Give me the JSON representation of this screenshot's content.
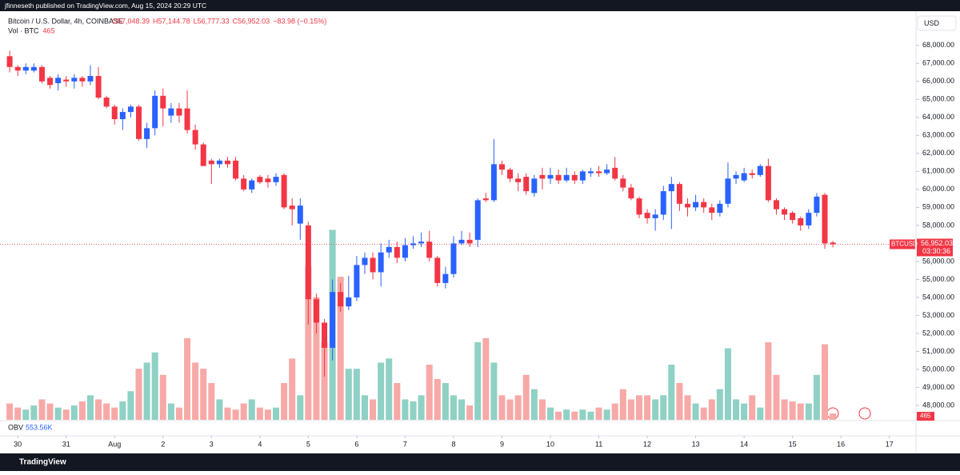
{
  "chart_data": {
    "type": "candlestick",
    "published": "jfinneseth published on TradingView.com, Aug 15, 2024 20:29 UTC",
    "title": "Bitcoin / U.S. Dollar, 4h, COINBASE",
    "header_values": [
      "O57,048.39",
      "H57,144.78",
      "L56,777.33",
      "C56,952.03",
      "−83.98 (−0.15%)"
    ],
    "volume_label": "Vol · BTC",
    "currency": "USD",
    "symbol": "BTCUSD",
    "last_price_label": "56,952.03",
    "countdown": "03:30:36",
    "indicator_name": "OBV",
    "indicator_value": "553.56K",
    "brand": "TradingView",
    "up_color": "#2962ff",
    "down_color": "#f23645",
    "volume_up_color": "#8fd1c4",
    "volume_down_color": "#f7a9a7",
    "open": [
      67400,
      66800,
      66600,
      66600,
      66800,
      66200,
      65900,
      66100,
      66000,
      66200,
      66000,
      66300,
      65100,
      64600,
      63900,
      64300,
      64600,
      62800,
      63400,
      65200,
      64100,
      64500,
      64500,
      63300,
      62500,
      61600,
      61400,
      61600,
      61600,
      60600,
      60000,
      60700,
      60600,
      60400,
      60800,
      59100,
      58100,
      58000,
      53900,
      52600,
      51200,
      54300,
      53500,
      54000,
      55800,
      56200,
      55400,
      56500,
      56800,
      56200,
      56900,
      57000,
      57100,
      56200,
      54800,
      55300,
      57000,
      57200,
      57200,
      59500,
      59400,
      61400,
      61100,
      60600,
      60700,
      59800,
      60800,
      60600,
      60800,
      60500,
      60800,
      60500,
      60900,
      61000,
      60900,
      61200,
      60600,
      60100,
      59500,
      58700,
      58400,
      58600,
      59900,
      60300,
      59200,
      59000,
      59300,
      59000,
      58700,
      59200,
      60600,
      60500,
      60900,
      60800,
      61300,
      59400,
      58900,
      58700,
      58400,
      58000,
      58700,
      59700,
      57048.39
    ],
    "high": [
      67700,
      66900,
      67000,
      67000,
      66900,
      66300,
      66400,
      66300,
      66400,
      66300,
      66900,
      66800,
      65200,
      64700,
      64500,
      64700,
      64700,
      63700,
      65500,
      65600,
      64800,
      64800,
      65500,
      63600,
      62600,
      61700,
      61700,
      61800,
      61800,
      60800,
      60600,
      60800,
      60800,
      60900,
      60900,
      59500,
      59500,
      58200,
      54200,
      52800,
      55000,
      54800,
      55200,
      56300,
      56500,
      56500,
      57000,
      57200,
      57100,
      57300,
      57400,
      57600,
      57700,
      56300,
      55700,
      57400,
      57700,
      57600,
      59500,
      59800,
      62800,
      61600,
      61200,
      60900,
      60900,
      60800,
      61200,
      61200,
      61100,
      61200,
      61000,
      61100,
      61200,
      61300,
      61400,
      61800,
      60800,
      60300,
      59600,
      58900,
      58900,
      60200,
      60700,
      60400,
      59500,
      59700,
      59500,
      59200,
      59400,
      61500,
      61000,
      61200,
      61100,
      61400,
      61700,
      59500,
      59000,
      58800,
      58500,
      58900,
      59800,
      59800,
      57144.78
    ],
    "low": [
      66500,
      66300,
      66400,
      66500,
      65900,
      65600,
      65500,
      65700,
      65600,
      65700,
      65800,
      65000,
      64500,
      63600,
      63300,
      64000,
      62700,
      62300,
      63000,
      63500,
      63700,
      63700,
      63100,
      62200,
      61300,
      60300,
      61200,
      61200,
      60500,
      59900,
      59800,
      60300,
      60100,
      60200,
      58900,
      58000,
      57200,
      52500,
      52000,
      49600,
      50500,
      53200,
      53300,
      53800,
      55300,
      55000,
      54600,
      56200,
      55900,
      56000,
      56700,
      56800,
      56000,
      54600,
      54500,
      55100,
      56900,
      56800,
      56800,
      59300,
      59300,
      60800,
      60400,
      59900,
      59700,
      59600,
      60000,
      60300,
      60300,
      60400,
      60300,
      60300,
      60700,
      60700,
      60800,
      60500,
      59900,
      59400,
      58400,
      58100,
      57700,
      58300,
      57800,
      58800,
      58500,
      58800,
      58700,
      58300,
      58500,
      59000,
      60300,
      60400,
      60600,
      60700,
      59300,
      58600,
      58300,
      58100,
      57700,
      57800,
      58500,
      56700,
      56777.33
    ],
    "close": [
      66800,
      66600,
      66800,
      66800,
      66000,
      65800,
      66200,
      66000,
      66200,
      66000,
      66300,
      65100,
      64600,
      63900,
      64300,
      64600,
      62800,
      63400,
      65200,
      64500,
      64500,
      64100,
      63300,
      62500,
      61300,
      61400,
      61600,
      61400,
      60600,
      60000,
      60500,
      60400,
      60400,
      60700,
      59000,
      58900,
      59100,
      53900,
      52600,
      51200,
      54300,
      53500,
      54000,
      55800,
      56200,
      55400,
      56500,
      56800,
      56200,
      56900,
      57000,
      57100,
      56200,
      54800,
      55300,
      57000,
      57200,
      57000,
      59400,
      59400,
      61400,
      61100,
      60600,
      60400,
      59900,
      60600,
      60600,
      60800,
      60500,
      60800,
      60500,
      61000,
      61000,
      60900,
      61100,
      60600,
      60100,
      59500,
      58600,
      58400,
      58600,
      59900,
      60300,
      59200,
      59000,
      59300,
      59000,
      58700,
      59200,
      60600,
      60800,
      60900,
      60800,
      61300,
      59400,
      58900,
      58600,
      58300,
      58000,
      58700,
      59600,
      57000,
      56952.03
    ],
    "volume": [
      1200,
      900,
      750,
      1050,
      1500,
      1200,
      900,
      750,
      1050,
      1350,
      1800,
      1500,
      1200,
      900,
      1350,
      2100,
      3750,
      4200,
      4950,
      3300,
      1200,
      900,
      6000,
      4200,
      3750,
      2700,
      1500,
      900,
      750,
      1200,
      1500,
      900,
      750,
      900,
      2700,
      4500,
      1800,
      11250,
      9000,
      5700,
      13950,
      10500,
      3750,
      3750,
      1800,
      1500,
      4200,
      4500,
      2700,
      1500,
      1350,
      1800,
      4050,
      3000,
      2700,
      1800,
      1500,
      1050,
      5700,
      6000,
      4200,
      1800,
      1500,
      1800,
      3300,
      2250,
      1500,
      900,
      600,
      750,
      600,
      750,
      600,
      900,
      750,
      1200,
      2250,
      1500,
      1800,
      1800,
      1500,
      1800,
      4050,
      2700,
      1800,
      1200,
      900,
      1500,
      2250,
      5250,
      1500,
      1200,
      1800,
      900,
      5700,
      3300,
      1500,
      1350,
      1200,
      1200,
      3300,
      5550,
      465
    ],
    "volume_lim": [
      0,
      30000
    ],
    "ylim": [
      47200,
      69900
    ],
    "yticks": [
      {
        "value": 48000,
        "label": "48,000.00"
      },
      {
        "value": 49000,
        "label": "49,000.00"
      },
      {
        "value": 50000,
        "label": "50,000.00"
      },
      {
        "value": 51000,
        "label": "51,000.00"
      },
      {
        "value": 52000,
        "label": "52,000.00"
      },
      {
        "value": 53000,
        "label": "53,000.00"
      },
      {
        "value": 54000,
        "label": "54,000.00"
      },
      {
        "value": 55000,
        "label": "55,000.00"
      },
      {
        "value": 56000,
        "label": "56,000.00"
      },
      {
        "value": 58000,
        "label": "58,000.00"
      },
      {
        "value": 59000,
        "label": "59,000.00"
      },
      {
        "value": 60000,
        "label": "60,000.00"
      },
      {
        "value": 61000,
        "label": "61,000.00"
      },
      {
        "value": 62000,
        "label": "62,000.00"
      },
      {
        "value": 63000,
        "label": "63,000.00"
      },
      {
        "value": 64000,
        "label": "64,000.00"
      },
      {
        "value": 65000,
        "label": "65,000.00"
      },
      {
        "value": 66000,
        "label": "66,000.00"
      },
      {
        "value": 67000,
        "label": "67,000.00"
      },
      {
        "value": 68000,
        "label": "68,000.00"
      }
    ],
    "xlim": [
      -1.2,
      112.3
    ],
    "xticks": [
      {
        "value": 1,
        "label": "30"
      },
      {
        "value": 7,
        "label": "31"
      },
      {
        "value": 13,
        "label": "Aug"
      },
      {
        "value": 19,
        "label": "2"
      },
      {
        "value": 25,
        "label": "3"
      },
      {
        "value": 31,
        "label": "4"
      },
      {
        "value": 37,
        "label": "5"
      },
      {
        "value": 43,
        "label": "6"
      },
      {
        "value": 49,
        "label": "7"
      },
      {
        "value": 55,
        "label": "8"
      },
      {
        "value": 61,
        "label": "9"
      },
      {
        "value": 67,
        "label": "10"
      },
      {
        "value": 73,
        "label": "11"
      },
      {
        "value": 79,
        "label": "12"
      },
      {
        "value": 85,
        "label": "13"
      },
      {
        "value": 91,
        "label": "14"
      },
      {
        "value": 97,
        "label": "15"
      },
      {
        "value": 103,
        "label": "16"
      },
      {
        "value": 109,
        "label": "17"
      }
    ]
  }
}
